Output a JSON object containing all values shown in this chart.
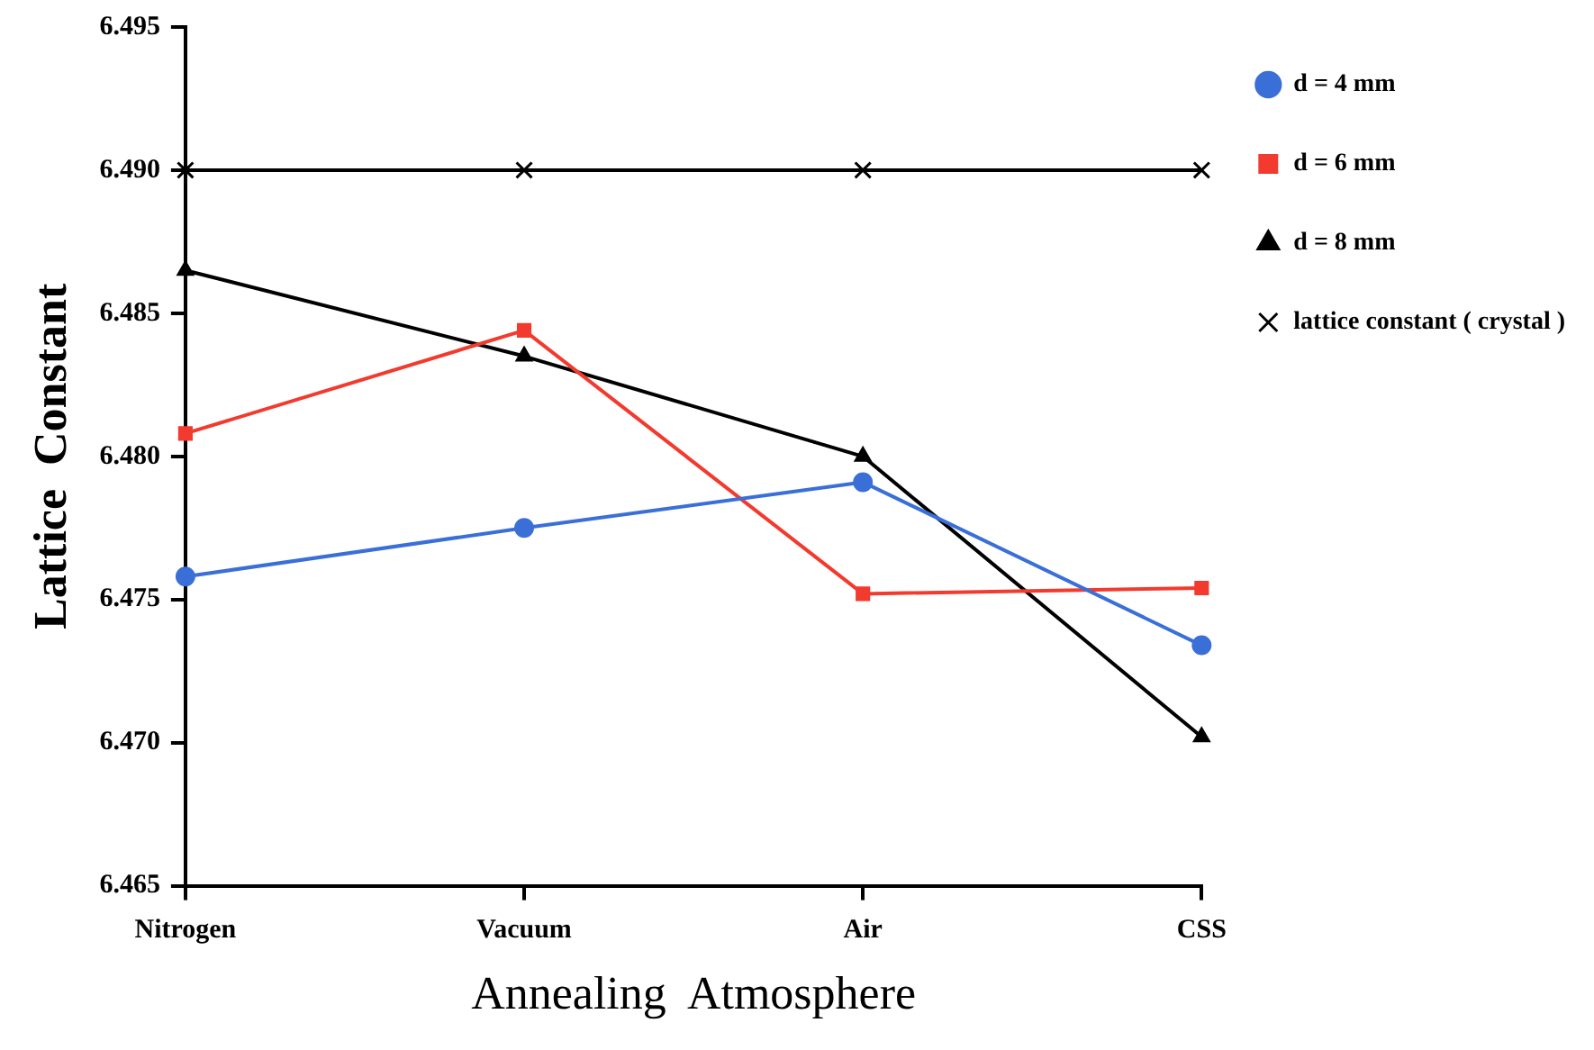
{
  "chart_data": {
    "type": "line",
    "xlabel": "Annealing  Atmosphere",
    "ylabel": "Lattice  Constant",
    "categories": [
      "Nitrogen",
      "Vacuum",
      "Air",
      "CSS"
    ],
    "series": [
      {
        "name": "d = 4 mm",
        "color": "#3b6fd8",
        "marker": "circle",
        "values": [
          6.4758,
          6.4775,
          6.4791,
          6.4734
        ]
      },
      {
        "name": "d = 6 mm",
        "color": "#f23a2e",
        "marker": "square",
        "values": [
          6.4808,
          6.4844,
          6.4752,
          6.4754
        ]
      },
      {
        "name": "d = 8 mm",
        "color": "#000000",
        "marker": "triangle",
        "values": [
          6.4865,
          6.4835,
          6.48,
          6.4702
        ]
      },
      {
        "name": "lattice constant ( crystal )",
        "color": "#000000",
        "marker": "cross",
        "values": [
          6.49,
          6.49,
          6.49,
          6.49
        ]
      }
    ],
    "ylim": [
      6.465,
      6.495
    ],
    "yticks": [
      {
        "value": 6.465,
        "label": "6.465"
      },
      {
        "value": 6.47,
        "label": "6.470"
      },
      {
        "value": 6.475,
        "label": "6.475"
      },
      {
        "value": 6.48,
        "label": "6.480"
      },
      {
        "value": 6.485,
        "label": "6.485"
      },
      {
        "value": 6.49,
        "label": "6.490"
      },
      {
        "value": 6.495,
        "label": "6.495"
      }
    ],
    "grid": false,
    "legend": "right",
    "line_style": "solid"
  }
}
